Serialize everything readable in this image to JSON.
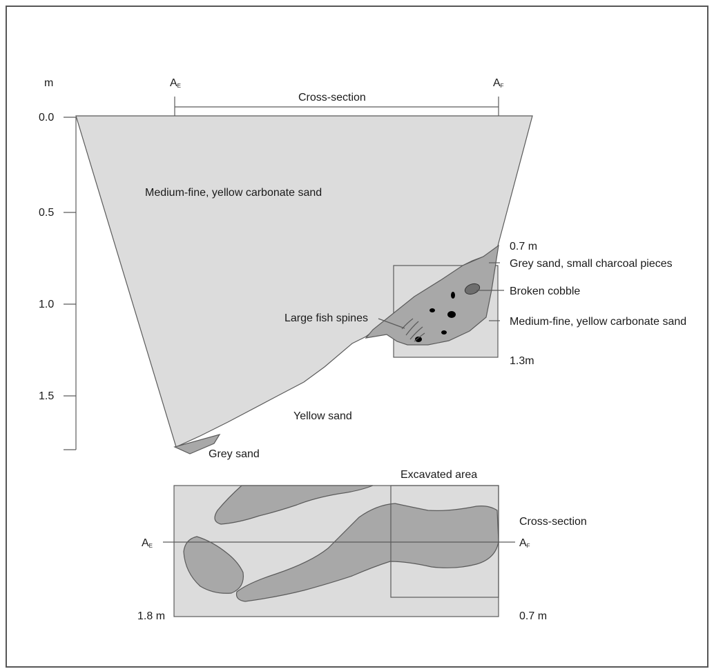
{
  "section": {
    "unit_label": "m",
    "depth_ticks": [
      "0.0",
      "0.5",
      "1.0",
      "1.5"
    ],
    "a_left": "A",
    "a_right": "A",
    "a_left_sub": "E",
    "a_right_sub": "F",
    "cross_section_label": "Cross-section",
    "upper_layer": "Medium-fine, yellow carbonate sand",
    "depth_07": "0.7 m",
    "grey_sand_charcoal": "Grey sand, small charcoal pieces",
    "broken_cobble": "Broken cobble",
    "fish_spines": "Large fish spines",
    "lower_layer_right": "Medium-fine, yellow carbonate sand",
    "depth_13": "1.3m",
    "yellow_sand": "Yellow sand",
    "grey_sand": "Grey sand"
  },
  "plan": {
    "excavated_area": "Excavated area",
    "cross_section_label": "Cross-section",
    "a_left": "A",
    "a_right": "A",
    "a_left_sub": "E",
    "a_right_sub": "F",
    "depth_left": "1.8 m",
    "depth_right": "0.7 m"
  },
  "colors": {
    "light_sand": "#dcdcdc",
    "grey_sand": "#a8a8a8",
    "charcoal": "#000000"
  }
}
